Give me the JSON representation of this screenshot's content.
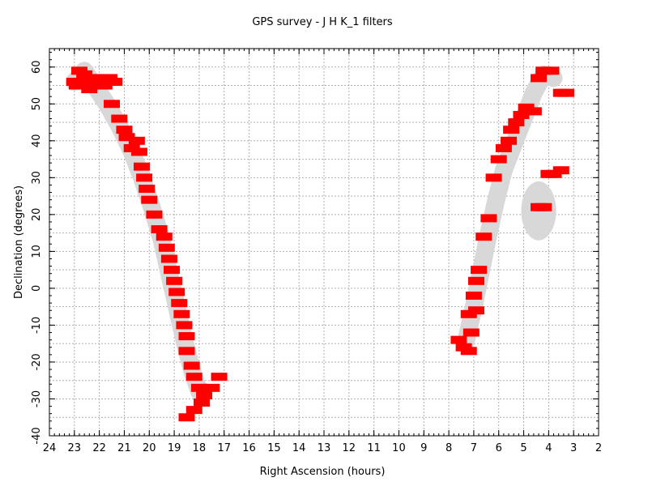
{
  "chart_data": {
    "type": "scatter",
    "title": "GPS survey - J H K_1  filters",
    "xlabel": "Right Ascension (hours)",
    "ylabel": "Declination (degrees)",
    "xlim": [
      24,
      2
    ],
    "ylim": [
      -40,
      65
    ],
    "x_ticks": [
      24,
      23,
      22,
      21,
      20,
      19,
      18,
      17,
      16,
      15,
      14,
      13,
      12,
      11,
      10,
      9,
      8,
      7,
      6,
      5,
      4,
      3,
      2
    ],
    "y_ticks": [
      -40,
      -30,
      -20,
      -10,
      0,
      10,
      20,
      30,
      40,
      50,
      60
    ],
    "grid": true,
    "colors": {
      "observed": "#ff0000",
      "planned": "#d8d8d8"
    },
    "planned_band_west": [
      [
        23.0,
        56
      ],
      [
        22.6,
        59
      ],
      [
        22.2,
        55
      ],
      [
        21.7,
        50
      ],
      [
        21.2,
        44
      ],
      [
        20.7,
        37
      ],
      [
        20.3,
        30
      ],
      [
        19.9,
        22
      ],
      [
        19.5,
        13
      ],
      [
        19.2,
        4
      ],
      [
        18.9,
        -5
      ],
      [
        18.6,
        -14
      ],
      [
        18.3,
        -22
      ],
      [
        18.0,
        -28
      ]
    ],
    "planned_band_east": [
      [
        7.3,
        -14
      ],
      [
        7.0,
        -5
      ],
      [
        6.7,
        5
      ],
      [
        6.4,
        15
      ],
      [
        6.1,
        24
      ],
      [
        5.8,
        32
      ],
      [
        5.4,
        39
      ],
      [
        5.0,
        46
      ],
      [
        4.6,
        53
      ],
      [
        4.2,
        58
      ],
      [
        3.8,
        57
      ]
    ],
    "planned_ellipse": {
      "ra": 4.4,
      "dec": 21,
      "ra_half": 0.7,
      "dec_half": 8
    },
    "fields_west": [
      [
        23.0,
        56
      ],
      [
        22.9,
        55
      ],
      [
        22.8,
        59
      ],
      [
        22.6,
        58
      ],
      [
        22.5,
        56
      ],
      [
        22.4,
        54
      ],
      [
        22.2,
        57
      ],
      [
        22.0,
        56
      ],
      [
        21.8,
        55
      ],
      [
        21.6,
        57
      ],
      [
        21.4,
        56
      ],
      [
        21.5,
        50
      ],
      [
        21.2,
        46
      ],
      [
        21.0,
        43
      ],
      [
        20.9,
        41
      ],
      [
        20.7,
        38
      ],
      [
        20.5,
        40
      ],
      [
        20.4,
        37
      ],
      [
        20.3,
        33
      ],
      [
        20.2,
        30
      ],
      [
        20.1,
        27
      ],
      [
        20.0,
        24
      ],
      [
        19.8,
        20
      ],
      [
        19.6,
        16
      ],
      [
        19.4,
        14
      ],
      [
        19.3,
        11
      ],
      [
        19.2,
        8
      ],
      [
        19.1,
        5
      ],
      [
        19.0,
        2
      ],
      [
        18.9,
        -1
      ],
      [
        18.8,
        -4
      ],
      [
        18.7,
        -7
      ],
      [
        18.6,
        -10
      ],
      [
        18.5,
        -13
      ],
      [
        18.5,
        -17
      ],
      [
        18.3,
        -21
      ],
      [
        18.2,
        -24
      ],
      [
        18.0,
        -27
      ],
      [
        17.8,
        -29
      ],
      [
        17.5,
        -27
      ],
      [
        17.2,
        -24
      ],
      [
        17.9,
        -31
      ],
      [
        18.2,
        -33
      ],
      [
        18.5,
        -35
      ]
    ],
    "fields_east": [
      [
        7.6,
        -14
      ],
      [
        7.4,
        -16
      ],
      [
        7.2,
        -17
      ],
      [
        7.1,
        -12
      ],
      [
        7.2,
        -7
      ],
      [
        6.9,
        -6
      ],
      [
        7.0,
        -2
      ],
      [
        6.9,
        2
      ],
      [
        6.8,
        5
      ],
      [
        6.6,
        14
      ],
      [
        6.4,
        19
      ],
      [
        6.2,
        30
      ],
      [
        6.0,
        35
      ],
      [
        5.8,
        38
      ],
      [
        5.6,
        40
      ],
      [
        5.5,
        43
      ],
      [
        5.3,
        45
      ],
      [
        5.1,
        47
      ],
      [
        4.9,
        49
      ],
      [
        4.6,
        48
      ],
      [
        4.4,
        22
      ],
      [
        4.2,
        22
      ],
      [
        4.0,
        31
      ],
      [
        3.8,
        31
      ],
      [
        3.5,
        32
      ],
      [
        3.3,
        53
      ],
      [
        3.5,
        53
      ],
      [
        3.9,
        59
      ],
      [
        4.2,
        59
      ],
      [
        4.4,
        57
      ]
    ]
  }
}
